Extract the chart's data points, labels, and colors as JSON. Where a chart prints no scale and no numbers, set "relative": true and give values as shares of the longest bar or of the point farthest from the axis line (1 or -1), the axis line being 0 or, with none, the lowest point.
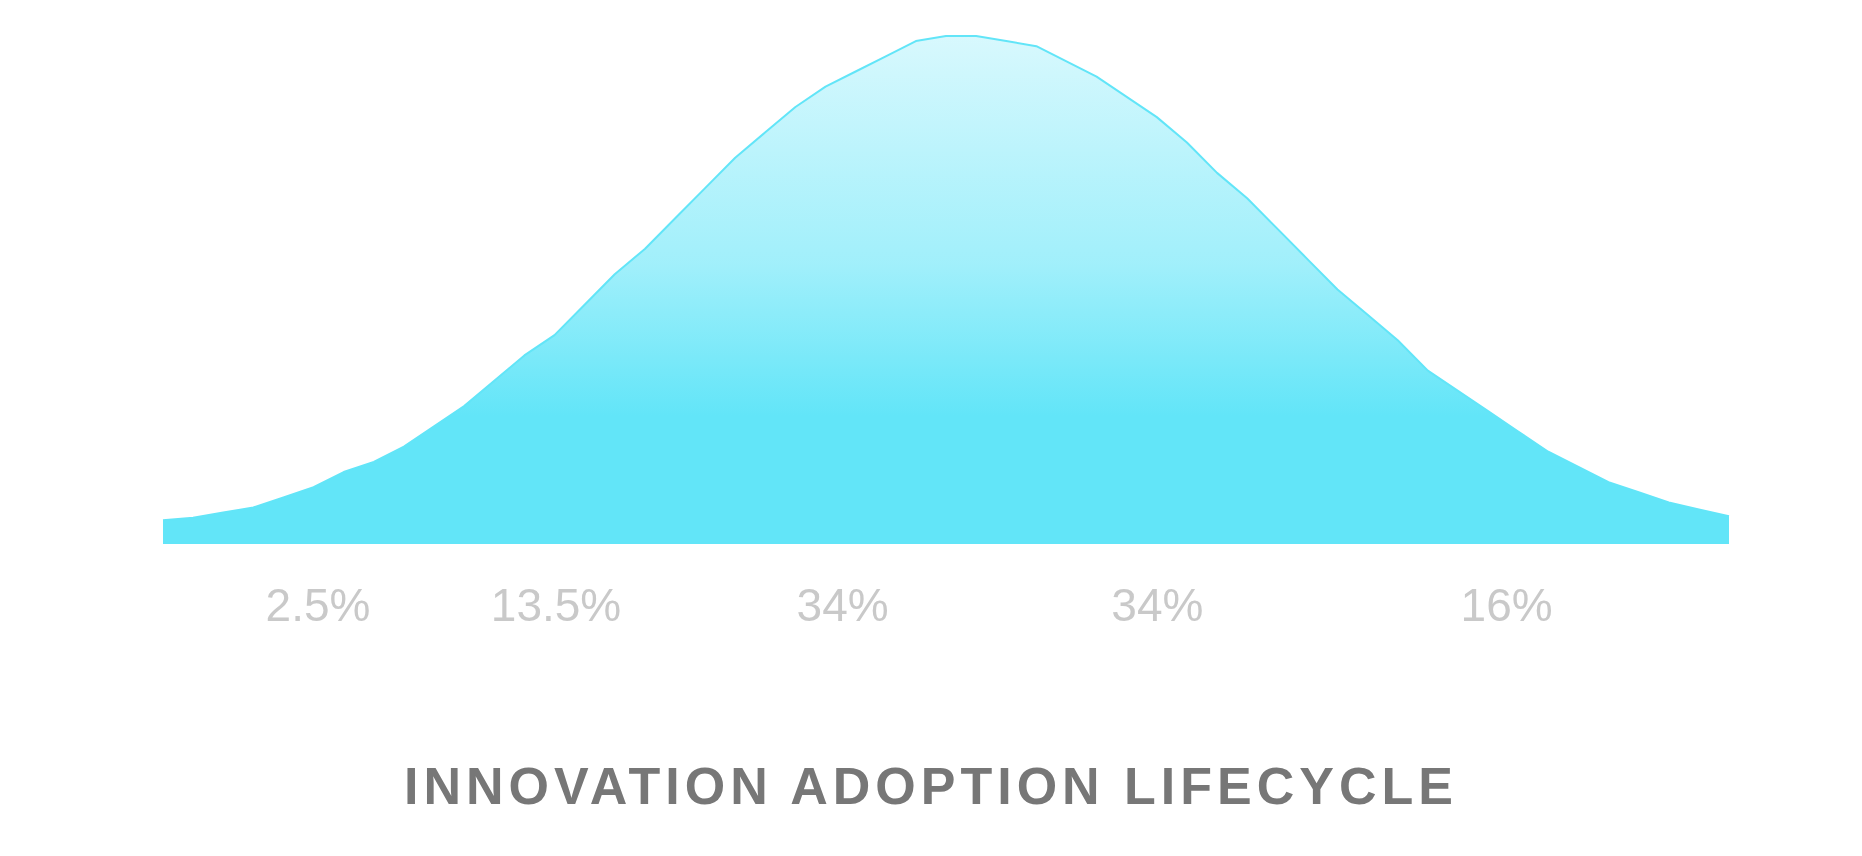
{
  "chart_data": {
    "type": "area",
    "title": "INNOVATION ADOPTION LIFECYCLE",
    "relative": true,
    "grid": false,
    "legend": false,
    "marker": "none",
    "color": "#62e5f8",
    "categories": [
      null,
      null,
      null,
      null,
      null,
      null,
      null,
      null,
      null,
      null,
      null,
      null,
      null,
      null,
      null,
      null,
      null,
      null,
      null,
      null,
      null,
      null,
      null,
      null,
      null,
      null,
      null,
      null,
      null,
      null,
      null,
      null,
      null,
      null,
      null,
      null,
      null,
      null,
      null,
      null,
      null,
      null,
      null,
      null,
      null,
      null,
      null,
      null,
      null,
      null,
      null,
      null,
      null
    ],
    "values": [
      0.045,
      0.05,
      0.06,
      0.07,
      0.09,
      0.11,
      0.14,
      0.16,
      0.19,
      0.23,
      0.27,
      0.32,
      0.37,
      0.41,
      0.47,
      0.53,
      0.58,
      0.64,
      0.7,
      0.76,
      0.81,
      0.86,
      0.9,
      0.93,
      0.96,
      0.99,
      1,
      1,
      0.99,
      0.98,
      0.95,
      0.92,
      0.88,
      0.84,
      0.79,
      0.73,
      0.68,
      0.62,
      0.56,
      0.5,
      0.45,
      0.4,
      0.34,
      0.3,
      0.26,
      0.22,
      0.18,
      0.15,
      0.12,
      0.1,
      0.08,
      0.066,
      0.053
    ],
    "annotations": [
      "2.5%",
      "13.5%",
      "34%",
      "34%",
      "16%"
    ]
  }
}
